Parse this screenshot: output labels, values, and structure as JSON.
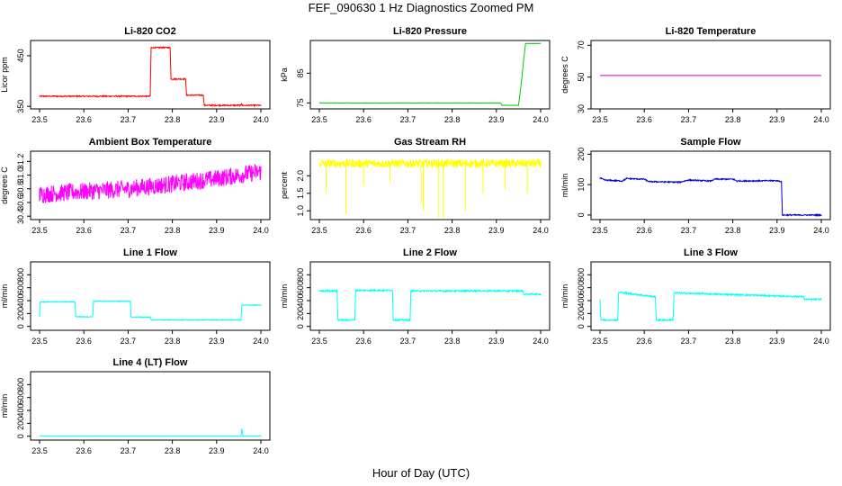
{
  "figure": {
    "title": "FEF_090630  1 Hz Diagnostics Zoomed PM",
    "xlabel": "Hour of Day (UTC)"
  },
  "chart_data": [
    {
      "type": "line",
      "title": "Li-820 CO2",
      "ylabel": "Licor ppm",
      "color": "#ff0000",
      "xlim": [
        23.5,
        24.0
      ],
      "ylim": [
        345,
        480
      ],
      "xticks": [
        "23.5",
        "23.6",
        "23.7",
        "23.8",
        "23.9",
        "24.0"
      ],
      "yticks": [
        {
          "v": 350,
          "label": "350"
        },
        {
          "v": 450,
          "label": "450"
        }
      ],
      "segments": [
        {
          "points": [
            [
              23.5,
              370
            ],
            [
              23.75,
              370
            ],
            [
              23.752,
              466
            ],
            [
              23.795,
              466
            ],
            [
              23.797,
              404
            ],
            [
              23.83,
              404
            ],
            [
              23.832,
              372
            ],
            [
              23.87,
              372
            ],
            [
              23.872,
              352
            ],
            [
              23.89,
              352
            ],
            [
              23.955,
              352
            ],
            [
              23.956,
              356
            ],
            [
              23.958,
              352
            ],
            [
              24.0,
              352
            ]
          ]
        }
      ],
      "noise": 1.2
    },
    {
      "type": "line",
      "title": "Li-820 Pressure",
      "ylabel": "kPa",
      "color": "#00cc00",
      "xlim": [
        23.5,
        24.0
      ],
      "ylim": [
        73,
        96
      ],
      "xticks": [
        "23.5",
        "23.6",
        "23.7",
        "23.8",
        "23.9",
        "24.0"
      ],
      "yticks": [
        {
          "v": 75,
          "label": "75"
        },
        {
          "v": 85,
          "label": "85"
        }
      ],
      "segments": [
        {
          "points": [
            [
              23.5,
              75
            ],
            [
              23.91,
              75
            ],
            [
              23.912,
              74.2
            ],
            [
              23.95,
              74.2
            ],
            [
              23.955,
              80
            ],
            [
              23.962,
              90
            ],
            [
              23.966,
              95
            ],
            [
              24.0,
              95
            ]
          ]
        }
      ],
      "noise": 0.05
    },
    {
      "type": "line",
      "title": "Li-820 Temperature",
      "ylabel": "degrees C",
      "color": "#cc00cc",
      "xlim": [
        23.5,
        24.0
      ],
      "ylim": [
        30,
        73
      ],
      "xticks": [
        "23.5",
        "23.6",
        "23.7",
        "23.8",
        "23.9",
        "24.0"
      ],
      "yticks": [
        {
          "v": 30,
          "label": "30"
        },
        {
          "v": 50,
          "label": "50"
        },
        {
          "v": 70,
          "label": "70"
        }
      ],
      "segments": [
        {
          "points": [
            [
              23.5,
              51
            ],
            [
              24.0,
              51
            ]
          ]
        }
      ],
      "noise": 0
    },
    {
      "type": "line",
      "title": "Ambient Box Temperature",
      "ylabel": "degrees C",
      "color": "#ff00ff",
      "xlim": [
        23.5,
        24.0
      ],
      "ylim": [
        30.35,
        31.35
      ],
      "xticks": [
        "23.5",
        "23.6",
        "23.7",
        "23.8",
        "23.9",
        "24.0"
      ],
      "yticks": [
        {
          "v": 30.4,
          "label": "30.4"
        },
        {
          "v": 30.6,
          "label": "30.6"
        },
        {
          "v": 30.8,
          "label": "30.8"
        },
        {
          "v": 31.0,
          "label": "31.0"
        },
        {
          "v": 31.2,
          "label": "31.2"
        }
      ],
      "segments": [
        {
          "points": [
            [
              23.5,
              30.72
            ],
            [
              23.6,
              30.76
            ],
            [
              23.7,
              30.8
            ],
            [
              23.8,
              30.87
            ],
            [
              23.9,
              30.95
            ],
            [
              24.0,
              31.05
            ]
          ]
        }
      ],
      "noise": 0.13
    },
    {
      "type": "line",
      "title": "Gas Stream RH",
      "ylabel": "percent",
      "color": "#ffff00",
      "xlim": [
        23.5,
        24.0
      ],
      "ylim": [
        0.75,
        2.7
      ],
      "xticks": [
        "23.5",
        "23.6",
        "23.7",
        "23.8",
        "23.9",
        "24.0"
      ],
      "yticks": [
        {
          "v": 1.0,
          "label": "1.0"
        },
        {
          "v": 1.5,
          "label": "1.5"
        },
        {
          "v": 2.0,
          "label": "2.0"
        }
      ],
      "segments": [
        {
          "points": [
            [
              23.5,
              2.35
            ],
            [
              24.0,
              2.35
            ]
          ]
        }
      ],
      "noise": 0.12,
      "spikes": [
        [
          23.515,
          1.5
        ],
        [
          23.56,
          0.9
        ],
        [
          23.6,
          1.7
        ],
        [
          23.66,
          1.8
        ],
        [
          23.73,
          1.2
        ],
        [
          23.735,
          1.0
        ],
        [
          23.77,
          0.8
        ],
        [
          23.78,
          0.8
        ],
        [
          23.83,
          1.0
        ],
        [
          23.87,
          1.5
        ],
        [
          23.92,
          1.6
        ],
        [
          23.97,
          1.5
        ]
      ]
    },
    {
      "type": "line",
      "title": "Sample Flow",
      "ylabel": "ml/min",
      "color": "#0000cc",
      "xlim": [
        23.5,
        24.0
      ],
      "ylim": [
        -15,
        210
      ],
      "xticks": [
        "23.5",
        "23.6",
        "23.7",
        "23.8",
        "23.9",
        "24.0"
      ],
      "yticks": [
        {
          "v": 0,
          "label": "0"
        },
        {
          "v": 100,
          "label": "100"
        },
        {
          "v": 200,
          "label": "200"
        }
      ],
      "segments": [
        {
          "points": [
            [
              23.5,
              122
            ],
            [
              23.51,
              115
            ],
            [
              23.55,
              112
            ],
            [
              23.56,
              120
            ],
            [
              23.6,
              118
            ],
            [
              23.61,
              110
            ],
            [
              23.68,
              108
            ],
            [
              23.7,
              115
            ],
            [
              23.75,
              112
            ],
            [
              23.76,
              118
            ],
            [
              23.8,
              118
            ],
            [
              23.81,
              112
            ],
            [
              23.9,
              113
            ],
            [
              23.91,
              110
            ],
            [
              23.912,
              0
            ],
            [
              24.0,
              0
            ]
          ]
        }
      ],
      "noise": 2
    },
    {
      "type": "line",
      "title": "Line 1 Flow",
      "ylabel": "ml/min",
      "color": "#00ffff",
      "xlim": [
        23.5,
        24.0
      ],
      "ylim": [
        -60,
        1000
      ],
      "xticks": [
        "23.5",
        "23.6",
        "23.7",
        "23.8",
        "23.9",
        "24.0"
      ],
      "yticks": [
        {
          "v": 0,
          "label": "0"
        },
        {
          "v": 200,
          "label": "200"
        },
        {
          "v": 400,
          "label": "400"
        },
        {
          "v": 600,
          "label": "600"
        },
        {
          "v": 800,
          "label": "800"
        }
      ],
      "segments": [
        {
          "points": [
            [
              23.5,
              150
            ],
            [
              23.501,
              380
            ],
            [
              23.58,
              380
            ],
            [
              23.582,
              150
            ],
            [
              23.62,
              150
            ],
            [
              23.622,
              390
            ],
            [
              23.705,
              390
            ],
            [
              23.707,
              145
            ],
            [
              23.75,
              145
            ],
            [
              23.752,
              100
            ],
            [
              23.955,
              100
            ],
            [
              23.957,
              330
            ],
            [
              24.0,
              330
            ]
          ]
        }
      ],
      "noise": 6
    },
    {
      "type": "line",
      "title": "Line 2 Flow",
      "ylabel": "ml/min",
      "color": "#00ffff",
      "xlim": [
        23.5,
        24.0
      ],
      "ylim": [
        -60,
        1000
      ],
      "xticks": [
        "23.5",
        "23.6",
        "23.7",
        "23.8",
        "23.9",
        "24.0"
      ],
      "yticks": [
        {
          "v": 0,
          "label": "0"
        },
        {
          "v": 200,
          "label": "200"
        },
        {
          "v": 400,
          "label": "400"
        },
        {
          "v": 600,
          "label": "600"
        },
        {
          "v": 800,
          "label": "800"
        }
      ],
      "segments": [
        {
          "points": [
            [
              23.5,
              550
            ],
            [
              23.54,
              550
            ],
            [
              23.542,
              100
            ],
            [
              23.58,
              100
            ],
            [
              23.582,
              560
            ],
            [
              23.665,
              560
            ],
            [
              23.667,
              100
            ],
            [
              23.705,
              100
            ],
            [
              23.707,
              550
            ],
            [
              23.96,
              550
            ],
            [
              23.962,
              500
            ],
            [
              24.0,
              500
            ]
          ]
        }
      ],
      "noise": 12
    },
    {
      "type": "line",
      "title": "Line 3 Flow",
      "ylabel": "ml/min",
      "color": "#00ffff",
      "xlim": [
        23.5,
        24.0
      ],
      "ylim": [
        -60,
        1000
      ],
      "xticks": [
        "23.5",
        "23.6",
        "23.7",
        "23.8",
        "23.9",
        "24.0"
      ],
      "yticks": [
        {
          "v": 0,
          "label": "0"
        },
        {
          "v": 200,
          "label": "200"
        },
        {
          "v": 400,
          "label": "400"
        },
        {
          "v": 600,
          "label": "600"
        },
        {
          "v": 800,
          "label": "800"
        }
      ],
      "segments": [
        {
          "points": [
            [
              23.5,
              420
            ],
            [
              23.502,
              100
            ],
            [
              23.54,
              100
            ],
            [
              23.542,
              530
            ],
            [
              23.625,
              460
            ],
            [
              23.627,
              100
            ],
            [
              23.665,
              100
            ],
            [
              23.667,
              520
            ],
            [
              23.96,
              460
            ],
            [
              23.962,
              420
            ],
            [
              24.0,
              420
            ]
          ]
        }
      ],
      "noise": 12
    },
    {
      "type": "line",
      "title": "Line 4 (LT) Flow",
      "ylabel": "ml/min",
      "color": "#00ffff",
      "xlim": [
        23.5,
        24.0
      ],
      "ylim": [
        -60,
        1000
      ],
      "xticks": [
        "23.5",
        "23.6",
        "23.7",
        "23.8",
        "23.9",
        "24.0"
      ],
      "yticks": [
        {
          "v": 0,
          "label": "0"
        },
        {
          "v": 200,
          "label": "200"
        },
        {
          "v": 400,
          "label": "400"
        },
        {
          "v": 600,
          "label": "600"
        },
        {
          "v": 800,
          "label": "800"
        }
      ],
      "segments": [
        {
          "points": [
            [
              23.5,
              5
            ],
            [
              23.955,
              5
            ],
            [
              23.957,
              120
            ],
            [
              23.959,
              5
            ],
            [
              24.0,
              5
            ]
          ]
        }
      ],
      "noise": 2
    }
  ]
}
